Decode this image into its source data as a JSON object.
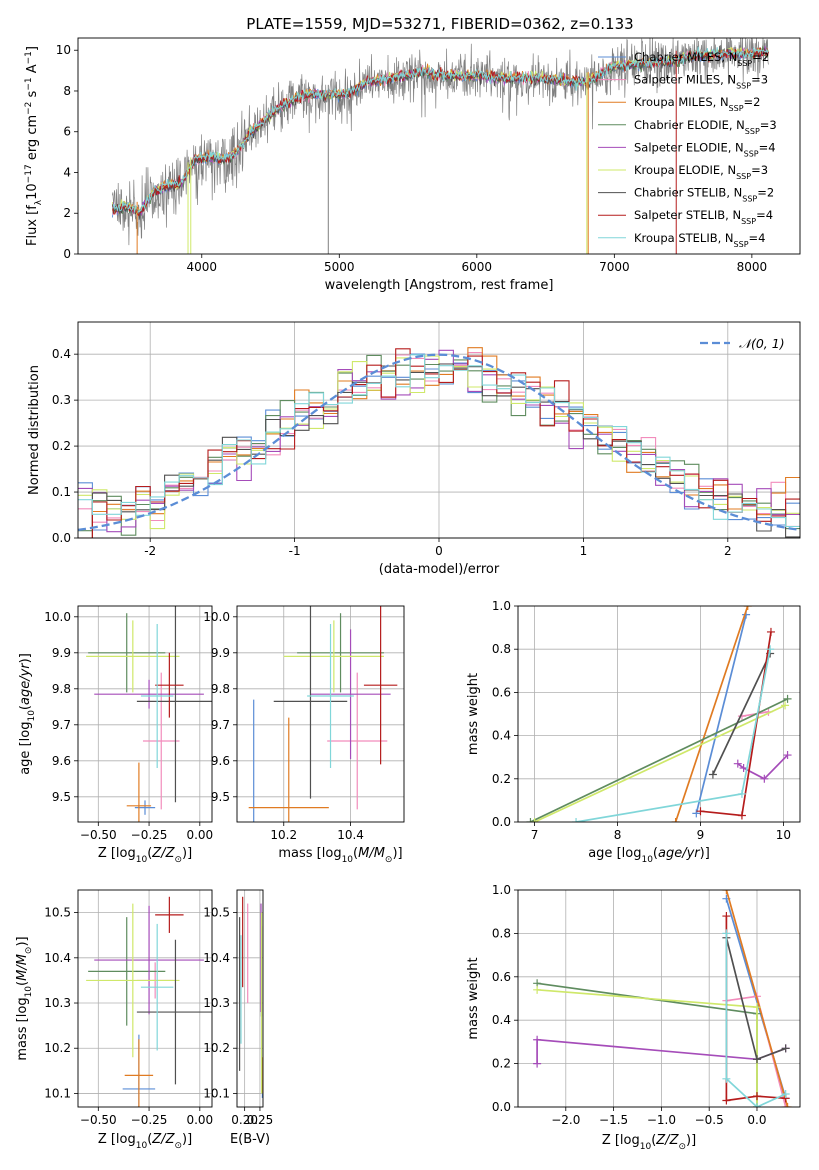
{
  "figure": {
    "title": "PLATE=1559, MJD=53271, FIBERID=0362, z=0.133"
  },
  "colors": {
    "Chabrier MILES": "#5b8dd6",
    "Salpeter MILES": "#f28cbc",
    "Kroupa MILES": "#e07b22",
    "Chabrier ELODIE": "#5f8c5f",
    "Salpeter ELODIE": "#a54cb9",
    "Kroupa ELODIE": "#cfe86a",
    "Chabrier STELIB": "#505050",
    "Salpeter STELIB": "#b51c1c",
    "Kroupa STELIB": "#80d6d9",
    "data": "#808080",
    "gaussian": "#5b8dd6"
  },
  "chart_data": [
    {
      "id": "spectrum",
      "type": "line",
      "title": "PLATE=1559, MJD=53271, FIBERID=0362, z=0.133",
      "xlabel": "wavelength [Angstrom, rest frame]",
      "ylabel": "Flux [f_λ 10^-17 erg cm^-2 s^-1 A^-1]",
      "xlim": [
        3100,
        8350
      ],
      "ylim": [
        0,
        10.6
      ],
      "xticks": [
        4000,
        5000,
        6000,
        7000,
        8000
      ],
      "yticks": [
        0,
        2,
        4,
        6,
        8,
        10
      ],
      "grid": false,
      "legend_position": "top-right",
      "legend": [
        {
          "name": "Chabrier MILES",
          "nssp": "2"
        },
        {
          "name": "Salpeter MILES",
          "nssp": "3"
        },
        {
          "name": "Kroupa MILES",
          "nssp": "2"
        },
        {
          "name": "Chabrier ELODIE",
          "nssp": "3"
        },
        {
          "name": "Salpeter ELODIE",
          "nssp": "4"
        },
        {
          "name": "Kroupa ELODIE",
          "nssp": "3"
        },
        {
          "name": "Chabrier STELIB",
          "nssp": "2"
        },
        {
          "name": "Salpeter STELIB",
          "nssp": "4"
        },
        {
          "name": "Kroupa STELIB",
          "nssp": "4"
        }
      ],
      "model_continuum": {
        "x": [
          3370,
          3450,
          3550,
          3650,
          3750,
          3850,
          3950,
          4050,
          4150,
          4250,
          4350,
          4450,
          4550,
          4650,
          4750,
          4850,
          4950,
          5050,
          5200,
          5400,
          5600,
          5800,
          6000,
          6200,
          6400,
          6600,
          6800,
          7000,
          7200,
          7400,
          7600,
          7800,
          8000,
          8100
        ],
        "y": [
          2.1,
          2.3,
          2.0,
          3.0,
          3.3,
          3.4,
          4.6,
          4.7,
          4.6,
          4.9,
          5.9,
          6.5,
          7.1,
          7.5,
          7.8,
          7.8,
          7.8,
          7.8,
          8.4,
          8.6,
          8.9,
          8.7,
          8.7,
          8.6,
          8.6,
          8.5,
          8.4,
          9.2,
          9.3,
          9.4,
          9.7,
          9.8,
          9.8,
          9.9
        ]
      },
      "data_spectrum_range": [
        3350,
        8120
      ],
      "vertical_spikes": [
        {
          "x": 3530,
          "color": "#e07b22"
        },
        {
          "x": 3900,
          "color": "#cfe86a"
        },
        {
          "x": 3920,
          "color": "#cfe86a"
        },
        {
          "x": 4920,
          "color": "#808080"
        },
        {
          "x": 6800,
          "color": "#cfe86a"
        },
        {
          "x": 6810,
          "color": "#e07b22"
        },
        {
          "x": 7450,
          "color": "#b51c1c"
        }
      ]
    },
    {
      "id": "residuals",
      "type": "step",
      "xlabel": "(data-model)/error",
      "ylabel": "Normed distribution",
      "xlim": [
        -2.5,
        2.5
      ],
      "ylim": [
        0,
        0.47
      ],
      "xticks": [
        -2,
        -1,
        0,
        1,
        2
      ],
      "yticks": [
        0.0,
        0.1,
        0.2,
        0.3,
        0.4
      ],
      "grid": true,
      "legend_position": "top-right",
      "gaussian_label": "𝒩(0, 1)",
      "bin_edges_start": -2.5,
      "bin_width": 0.1
    },
    {
      "id": "age-vs-Z",
      "type": "errorbar",
      "xlabel": "Z [log10(Z/Z⊙)]",
      "ylabel": "age [log10(age/yr)]",
      "xlim": [
        -0.6,
        0.06
      ],
      "ylim": [
        9.43,
        10.03
      ],
      "xticks": [
        -0.5,
        -0.25,
        0.0
      ],
      "xticklabels": [
        "−0.50",
        "−0.25",
        "0.00"
      ],
      "yticks": [
        9.5,
        9.6,
        9.7,
        9.8,
        9.9,
        10.0
      ],
      "grid": true,
      "points": [
        {
          "series": "Chabrier MILES",
          "x": -0.27,
          "xerr": 0.05,
          "y": 9.47,
          "yerr": 0.02
        },
        {
          "series": "Salpeter MILES",
          "x": -0.19,
          "xerr": 0.09,
          "y": 9.655,
          "yerr": 0.19
        },
        {
          "series": "Kroupa MILES",
          "x": -0.3,
          "xerr": 0.06,
          "y": 9.475,
          "yerr": 0.12
        },
        {
          "series": "Chabrier ELODIE",
          "x": -0.36,
          "xerr": 0.19,
          "y": 9.9,
          "yerr": 0.11
        },
        {
          "series": "Salpeter ELODIE",
          "x": -0.25,
          "xerr": 0.27,
          "y": 9.785,
          "yerr": 0.04
        },
        {
          "series": "Kroupa ELODIE",
          "x": -0.33,
          "xerr": 0.23,
          "y": 9.89,
          "yerr": 0.1
        },
        {
          "series": "Chabrier STELIB",
          "x": -0.12,
          "xerr": 0.19,
          "y": 9.765,
          "yerr": 0.28
        },
        {
          "series": "Salpeter STELIB",
          "x": -0.15,
          "xerr": 0.07,
          "y": 9.81,
          "yerr": 0.09
        },
        {
          "series": "Kroupa STELIB",
          "x": -0.21,
          "xerr": 0.08,
          "y": 9.78,
          "yerr": 0.2
        }
      ]
    },
    {
      "id": "age-vs-mass",
      "type": "errorbar",
      "xlabel": "mass [log10(M/M⊙)]",
      "xlim": [
        10.06,
        10.56
      ],
      "ylim": [
        9.43,
        10.03
      ],
      "xticks": [
        10.2,
        10.4
      ],
      "xticklabels": [
        "10.2",
        "10.4"
      ],
      "yticks": [
        9.5,
        9.6,
        9.7,
        9.8,
        9.9,
        10.0
      ],
      "grid": true,
      "points": [
        {
          "series": "Chabrier MILES",
          "x": 10.11,
          "xerr": 0.0,
          "y": 9.47,
          "yerr": 0.3
        },
        {
          "series": "Salpeter MILES",
          "x": 10.42,
          "xerr": 0.09,
          "y": 9.655,
          "yerr": 0.19
        },
        {
          "series": "Kroupa MILES",
          "x": 10.215,
          "xerr": 0.12,
          "y": 9.47,
          "yerr": 0.25
        },
        {
          "series": "Chabrier ELODIE",
          "x": 10.37,
          "xerr": 0.13,
          "y": 9.9,
          "yerr": 0.11
        },
        {
          "series": "Salpeter ELODIE",
          "x": 10.4,
          "xerr": 0.12,
          "y": 9.785,
          "yerr": 0.18
        },
        {
          "series": "Kroupa ELODIE",
          "x": 10.35,
          "xerr": 0.15,
          "y": 9.89,
          "yerr": 0.1
        },
        {
          "series": "Chabrier STELIB",
          "x": 10.28,
          "xerr": 0.11,
          "y": 9.765,
          "yerr": 0.27
        },
        {
          "series": "Salpeter STELIB",
          "x": 10.49,
          "xerr": 0.05,
          "y": 9.81,
          "yerr": 0.22
        },
        {
          "series": "Kroupa STELIB",
          "x": 10.34,
          "xerr": 0.07,
          "y": 9.78,
          "yerr": 0.2
        }
      ]
    },
    {
      "id": "weight-vs-age",
      "type": "line",
      "xlabel": "age [log10(age/yr)]",
      "ylabel": "mass weight",
      "xlim": [
        6.8,
        10.2
      ],
      "ylim": [
        0,
        1
      ],
      "xticks": [
        7,
        8,
        9,
        10
      ],
      "yticks": [
        0.0,
        0.2,
        0.4,
        0.6,
        0.8,
        1.0
      ],
      "grid": true,
      "series": [
        {
          "name": "Chabrier MILES",
          "x": [
            8.95,
            9.55
          ],
          "y": [
            0.04,
            0.96
          ]
        },
        {
          "name": "Salpeter MILES",
          "x": [
            9.5,
            9.82
          ],
          "y": [
            0.49,
            0.51
          ]
        },
        {
          "name": "Kroupa MILES",
          "x": [
            8.7,
            9.57
          ],
          "y": [
            0.0,
            1.0
          ]
        },
        {
          "name": "Chabrier ELODIE",
          "x": [
            6.95,
            10.05
          ],
          "y": [
            0.0,
            0.57
          ]
        },
        {
          "name": "Salpeter ELODIE",
          "x": [
            9.45,
            9.52,
            9.77,
            10.05
          ],
          "y": [
            0.27,
            0.25,
            0.2,
            0.31
          ]
        },
        {
          "name": "Kroupa ELODIE",
          "x": [
            7.0,
            10.02
          ],
          "y": [
            0.0,
            0.54
          ]
        },
        {
          "name": "Chabrier STELIB",
          "x": [
            9.15,
            9.84
          ],
          "y": [
            0.22,
            0.78
          ]
        },
        {
          "name": "Salpeter STELIB",
          "x": [
            9.0,
            9.5,
            9.85
          ],
          "y": [
            0.05,
            0.03,
            0.88
          ]
        },
        {
          "name": "Kroupa STELIB",
          "x": [
            7.5,
            9.5,
            9.84
          ],
          "y": [
            0.0,
            0.13,
            0.8
          ]
        }
      ]
    },
    {
      "id": "mass-vs-Z",
      "type": "errorbar",
      "xlabel": "Z [log10(Z/Z⊙)]",
      "ylabel": "mass [log10(M/M⊙)]",
      "xlim": [
        -0.6,
        0.06
      ],
      "ylim": [
        10.07,
        10.55
      ],
      "xticks": [
        -0.5,
        -0.25,
        0.0
      ],
      "xticklabels": [
        "−0.50",
        "−0.25",
        "0.00"
      ],
      "yticks": [
        10.1,
        10.2,
        10.3,
        10.4,
        10.5
      ],
      "grid": true,
      "points": [
        {
          "series": "Chabrier MILES",
          "x": -0.3,
          "xerr": 0.08,
          "y": 10.11,
          "yerr": 0.12
        },
        {
          "series": "Salpeter MILES",
          "x": -0.22,
          "xerr": 0.09,
          "y": 10.35,
          "yerr": 0.04
        },
        {
          "series": "Kroupa MILES",
          "x": -0.3,
          "xerr": 0.07,
          "y": 10.14,
          "yerr": 0.08
        },
        {
          "series": "Chabrier ELODIE",
          "x": -0.36,
          "xerr": 0.19,
          "y": 10.37,
          "yerr": 0.12
        },
        {
          "series": "Salpeter ELODIE",
          "x": -0.25,
          "xerr": 0.27,
          "y": 10.395,
          "yerr": 0.12
        },
        {
          "series": "Kroupa ELODIE",
          "x": -0.33,
          "xerr": 0.23,
          "y": 10.35,
          "yerr": 0.17
        },
        {
          "series": "Chabrier STELIB",
          "x": -0.12,
          "xerr": 0.19,
          "y": 10.28,
          "yerr": 0.16
        },
        {
          "series": "Salpeter STELIB",
          "x": -0.15,
          "xerr": 0.07,
          "y": 10.495,
          "yerr": 0.04
        },
        {
          "series": "Kroupa STELIB",
          "x": -0.21,
          "xerr": 0.08,
          "y": 10.335,
          "yerr": 0.14
        }
      ]
    },
    {
      "id": "mass-vs-EBV",
      "type": "errorbar",
      "xlabel": "E(B-V)",
      "xlim": [
        0.175,
        0.26
      ],
      "ylim": [
        10.07,
        10.55
      ],
      "xticks": [
        0.2,
        0.25
      ],
      "xticklabels": [
        "0.20",
        "0.25"
      ],
      "yticks": [
        10.1,
        10.2,
        10.3,
        10.4,
        10.5
      ],
      "grid": true,
      "points": [
        {
          "series": "Chabrier MILES",
          "x": 0.258,
          "y": 10.11,
          "yerr": 0.02
        },
        {
          "series": "Salpeter MILES",
          "x": 0.21,
          "y": 10.41,
          "yerr": 0.11
        },
        {
          "series": "Kroupa MILES",
          "x": 0.2565,
          "y": 10.14,
          "yerr": 0.04
        },
        {
          "series": "Chabrier ELODIE",
          "x": 0.255,
          "y": 10.37,
          "yerr": 0.1
        },
        {
          "series": "Salpeter ELODIE",
          "x": 0.2535,
          "y": 10.4,
          "yerr": 0.12
        },
        {
          "series": "Kroupa ELODIE",
          "x": 0.2555,
          "y": 10.3,
          "yerr": 0.2
        },
        {
          "series": "Chabrier STELIB",
          "x": 0.1835,
          "y": 10.32,
          "yerr": 0.17
        },
        {
          "series": "Salpeter STELIB",
          "x": 0.1935,
          "y": 10.435,
          "yerr": 0.1
        },
        {
          "series": "Kroupa STELIB",
          "x": 0.188,
          "y": 10.33,
          "yerr": 0.12
        }
      ]
    },
    {
      "id": "weight-vs-Z",
      "type": "line",
      "xlabel": "Z [log10(Z/Z⊙)]",
      "ylabel": "mass weight",
      "xlim": [
        -2.5,
        0.45
      ],
      "ylim": [
        0,
        1
      ],
      "xticks": [
        -2.0,
        -1.5,
        -1.0,
        -0.5,
        0.0
      ],
      "xticklabels": [
        "−2.0",
        "−1.5",
        "−1.0",
        "−0.5",
        "0.0"
      ],
      "yticks": [
        0.0,
        0.2,
        0.4,
        0.6,
        0.8,
        1.0
      ],
      "grid": true,
      "series": [
        {
          "name": "Chabrier MILES",
          "x": [
            -0.32,
            0.3
          ],
          "y": [
            0.96,
            0.04
          ]
        },
        {
          "name": "Salpeter MILES",
          "x": [
            -0.32,
            0.0,
            0.3
          ],
          "y": [
            0.49,
            0.51,
            0.0
          ]
        },
        {
          "name": "Kroupa MILES",
          "x": [
            -0.32,
            0.32
          ],
          "y": [
            1.0,
            0.0
          ]
        },
        {
          "name": "Chabrier ELODIE",
          "x": [
            -2.3,
            0.0,
            0.0
          ],
          "y": [
            0.57,
            0.43,
            0.0
          ]
        },
        {
          "name": "Salpeter ELODIE",
          "x": [
            -2.3,
            -2.3,
            0.0,
            0.3
          ],
          "y": [
            0.2,
            0.31,
            0.22,
            0.27
          ]
        },
        {
          "name": "Kroupa ELODIE",
          "x": [
            -2.3,
            0.0,
            0.0
          ],
          "y": [
            0.54,
            0.46,
            0.0
          ]
        },
        {
          "name": "Chabrier STELIB",
          "x": [
            -0.32,
            0.0,
            0.3
          ],
          "y": [
            0.78,
            0.22,
            0.27
          ]
        },
        {
          "name": "Salpeter STELIB",
          "x": [
            -0.32,
            -0.32,
            0.0,
            0.3
          ],
          "y": [
            0.88,
            0.03,
            0.05,
            0.04
          ]
        },
        {
          "name": "Kroupa STELIB",
          "x": [
            -0.32,
            -0.32,
            0.0,
            0.3
          ],
          "y": [
            0.8,
            0.13,
            0.0,
            0.06
          ]
        }
      ]
    }
  ]
}
